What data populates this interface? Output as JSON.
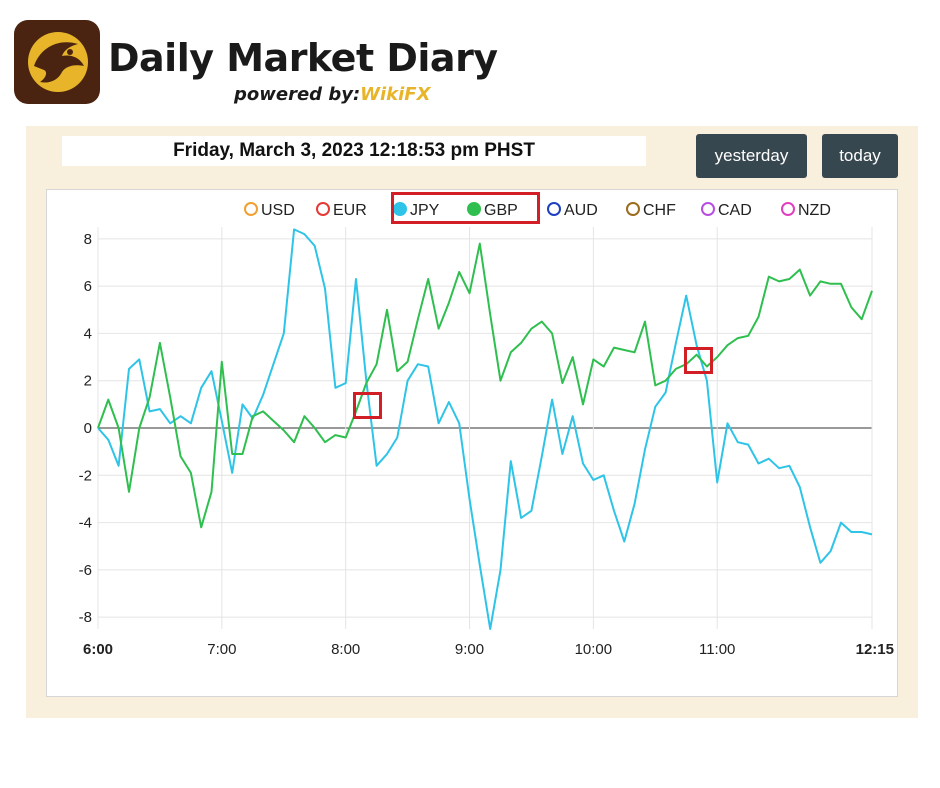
{
  "brand": {
    "title": "Daily Market Diary",
    "subtitle_prefix": "powered by:",
    "subtitle_brand": "WikiFX"
  },
  "header": {
    "datetime": "Friday, March 3, 2023 12:18:53 pm PHST"
  },
  "buttons": {
    "yesterday": "yesterday",
    "today": "today"
  },
  "colors": {
    "panel_bg": "#f8f0dd",
    "button_bg": "#37474f",
    "highlight": "#d21f26",
    "JPY": "#2ec4e8",
    "GBP": "#2fbf4f"
  },
  "chart_data": {
    "type": "line",
    "legend": [
      {
        "name": "USD",
        "color": "#f0a030",
        "filled": false
      },
      {
        "name": "EUR",
        "color": "#e53935",
        "filled": false
      },
      {
        "name": "JPY",
        "color": "#2ec4e8",
        "filled": true
      },
      {
        "name": "GBP",
        "color": "#2fbf4f",
        "filled": true
      },
      {
        "name": "AUD",
        "color": "#1e40c0",
        "filled": false
      },
      {
        "name": "CHF",
        "color": "#9c6b1e",
        "filled": false
      },
      {
        "name": "CAD",
        "color": "#b84de0",
        "filled": false
      },
      {
        "name": "NZD",
        "color": "#e040c0",
        "filled": false
      }
    ],
    "legend_position": "top-center",
    "x_unit": "minutes since 6:00",
    "xlim": [
      0,
      375
    ],
    "ylim": [
      -8.5,
      8.5
    ],
    "yticks": [
      8,
      6,
      4,
      2,
      0,
      -2,
      -4,
      -6,
      -8
    ],
    "xticks": [
      {
        "label": "6:00",
        "value": 0,
        "bold": true
      },
      {
        "label": "7:00",
        "value": 60,
        "bold": false
      },
      {
        "label": "8:00",
        "value": 120,
        "bold": false
      },
      {
        "label": "9:00",
        "value": 180,
        "bold": false
      },
      {
        "label": "10:00",
        "value": 240,
        "bold": false
      },
      {
        "label": "11:00",
        "value": 300,
        "bold": false
      },
      {
        "label": "12:15",
        "value": 375,
        "bold": true
      }
    ],
    "grid": true,
    "series": [
      {
        "name": "JPY",
        "color": "#2ec4e8",
        "x": [
          0,
          5,
          10,
          15,
          20,
          25,
          30,
          35,
          40,
          45,
          50,
          55,
          60,
          65,
          70,
          75,
          80,
          85,
          90,
          95,
          100,
          105,
          110,
          115,
          120,
          125,
          130,
          135,
          140,
          145,
          150,
          155,
          160,
          165,
          170,
          175,
          180,
          185,
          190,
          195,
          200,
          205,
          210,
          215,
          220,
          225,
          230,
          235,
          240,
          245,
          250,
          255,
          260,
          265,
          270,
          275,
          280,
          285,
          290,
          295,
          300,
          305,
          310,
          315,
          320,
          325,
          330,
          335,
          340,
          345,
          350,
          355,
          360,
          365,
          370,
          375
        ],
        "values": [
          0,
          -0.5,
          -1.6,
          2.5,
          2.9,
          0.7,
          0.8,
          0.2,
          0.5,
          0.2,
          1.7,
          2.4,
          0.3,
          -1.9,
          1.0,
          0.4,
          1.4,
          2.7,
          4.0,
          8.4,
          8.2,
          7.7,
          5.9,
          1.7,
          1.9,
          6.3,
          2.0,
          -1.6,
          -1.1,
          -0.4,
          2.0,
          2.7,
          2.6,
          0.2,
          1.1,
          0.2,
          -3.0,
          -5.8,
          -8.5,
          -6.0,
          -1.4,
          -3.8,
          -3.5,
          -1.2,
          1.2,
          -1.1,
          0.5,
          -1.5,
          -2.2,
          -2.0,
          -3.5,
          -4.8,
          -3.2,
          -0.9,
          0.9,
          1.5,
          3.6,
          5.6,
          3.5,
          2.0,
          -2.3,
          0.2,
          -0.6,
          -0.7,
          -1.5,
          -1.3,
          -1.7,
          -1.6,
          -2.5,
          -4.2,
          -5.7,
          -5.2,
          -4.0,
          -4.4,
          -4.4,
          -4.5
        ]
      },
      {
        "name": "GBP",
        "color": "#2fbf4f",
        "x": [
          0,
          5,
          10,
          15,
          20,
          25,
          30,
          35,
          40,
          45,
          50,
          55,
          60,
          65,
          70,
          75,
          80,
          85,
          90,
          95,
          100,
          105,
          110,
          115,
          120,
          125,
          130,
          135,
          140,
          145,
          150,
          155,
          160,
          165,
          170,
          175,
          180,
          185,
          190,
          195,
          200,
          205,
          210,
          215,
          220,
          225,
          230,
          235,
          240,
          245,
          250,
          255,
          260,
          265,
          270,
          275,
          280,
          285,
          290,
          295,
          300,
          305,
          310,
          315,
          320,
          325,
          330,
          335,
          340,
          345,
          350,
          355,
          360,
          365,
          370,
          375
        ],
        "values": [
          0,
          1.2,
          0,
          -2.7,
          0,
          1.3,
          3.6,
          1.3,
          -1.2,
          -1.9,
          -4.2,
          -2.7,
          2.8,
          -1.1,
          -1.1,
          0.5,
          0.7,
          0.3,
          -0.1,
          -0.6,
          0.5,
          0,
          -0.6,
          -0.3,
          -0.4,
          0.7,
          1.9,
          2.7,
          5.0,
          2.4,
          2.8,
          4.6,
          6.3,
          4.2,
          5.3,
          6.6,
          5.7,
          7.8,
          4.8,
          2.0,
          3.2,
          3.6,
          4.2,
          4.5,
          4.0,
          1.9,
          3.0,
          1.0,
          2.9,
          2.6,
          3.4,
          3.3,
          3.2,
          4.5,
          1.8,
          2.0,
          2.5,
          2.7,
          3.1,
          2.6,
          3.0,
          3.5,
          3.8,
          3.9,
          4.7,
          6.4,
          6.2,
          6.3,
          6.7,
          5.6,
          6.2,
          6.1,
          6.1,
          5.1,
          4.6,
          5.8
        ]
      }
    ]
  }
}
